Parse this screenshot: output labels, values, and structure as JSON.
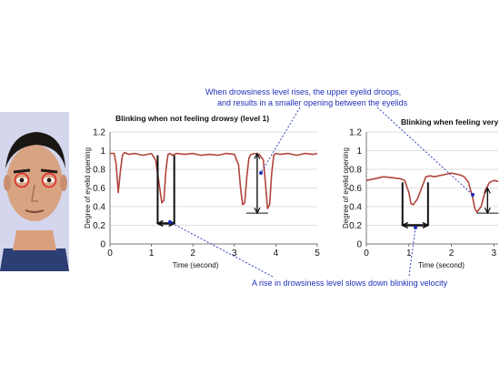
{
  "annotations": {
    "top_line1": "When drowsiness level rises, the upper eyelid droops,",
    "top_line2": "and results in a smaller opening between the eyelids",
    "bottom": "A rise in drowsiness level slows down blinking velocity"
  },
  "colors": {
    "curve": "#b0453c",
    "annotation": "#1f2fb8",
    "marker": "#111111",
    "grid": "#d4d4d4"
  },
  "photo_icon": "face-photo",
  "chart_data": [
    {
      "type": "line",
      "title": "Blinking when not feeling drowsy (level 1)",
      "xlabel": "Time (second)",
      "ylabel": "Degree of eyelid opening",
      "xlim": [
        0,
        5
      ],
      "ylim": [
        0,
        1.2
      ],
      "xticks": [
        "0",
        "1",
        "2",
        "3",
        "4",
        "5"
      ],
      "yticks": [
        "0",
        "0.2",
        "0.4",
        "0.6",
        "0.8",
        "1",
        "1.2"
      ],
      "grid": "horizontal",
      "series": [
        {
          "x": [
            0,
            0.1,
            0.15,
            0.2,
            0.25,
            0.3,
            0.35,
            0.45,
            0.6,
            0.8,
            1.0,
            1.1,
            1.2,
            1.25,
            1.3,
            1.35,
            1.4,
            1.45,
            1.5,
            1.6,
            1.8,
            2.0,
            2.2,
            2.4,
            2.6,
            2.8,
            3.0,
            3.1,
            3.15,
            3.2,
            3.25,
            3.3,
            3.35,
            3.4,
            3.5,
            3.6,
            3.7,
            3.75,
            3.8,
            3.85,
            3.9,
            3.95,
            4.0,
            4.1,
            4.3,
            4.5,
            4.7,
            4.9,
            5.0
          ],
          "y": [
            0.97,
            0.97,
            0.85,
            0.55,
            0.78,
            0.95,
            0.98,
            0.96,
            0.97,
            0.95,
            0.97,
            0.9,
            0.6,
            0.44,
            0.47,
            0.8,
            0.96,
            0.97,
            0.95,
            0.97,
            0.96,
            0.97,
            0.95,
            0.96,
            0.95,
            0.97,
            0.96,
            0.85,
            0.6,
            0.42,
            0.44,
            0.72,
            0.92,
            0.96,
            0.97,
            0.96,
            0.9,
            0.65,
            0.38,
            0.42,
            0.75,
            0.95,
            0.97,
            0.96,
            0.97,
            0.95,
            0.97,
            0.96,
            0.97
          ]
        }
      ],
      "markers": {
        "blink_width": {
          "x_start": 1.15,
          "x_end": 1.55,
          "y": 0.22,
          "y_top": 0.95
        },
        "opening_height": {
          "x": 3.55,
          "y_start": 0.97,
          "y_end": 0.33
        }
      }
    },
    {
      "type": "line",
      "title": "Blinking when feeling very",
      "xlabel": "Time (second)",
      "ylabel": "Degree of eyelid opening",
      "xlim": [
        0,
        3.1
      ],
      "ylim": [
        0,
        1.2
      ],
      "xticks": [
        "0",
        "1",
        "2",
        "3"
      ],
      "yticks": [
        "0",
        "0.2",
        "0.4",
        "0.6",
        "0.8",
        "1",
        "1.2"
      ],
      "grid": "horizontal",
      "series": [
        {
          "x": [
            0,
            0.2,
            0.4,
            0.6,
            0.8,
            0.9,
            1.0,
            1.05,
            1.1,
            1.2,
            1.3,
            1.4,
            1.5,
            1.6,
            1.8,
            2.0,
            2.2,
            2.3,
            2.4,
            2.5,
            2.55,
            2.6,
            2.7,
            2.8,
            2.9,
            3.0,
            3.1
          ],
          "y": [
            0.68,
            0.7,
            0.72,
            0.71,
            0.7,
            0.68,
            0.55,
            0.43,
            0.42,
            0.48,
            0.6,
            0.72,
            0.73,
            0.72,
            0.74,
            0.76,
            0.74,
            0.72,
            0.66,
            0.5,
            0.38,
            0.34,
            0.4,
            0.58,
            0.66,
            0.68,
            0.67
          ]
        }
      ],
      "markers": {
        "blink_width": {
          "x_start": 0.85,
          "x_end": 1.45,
          "y": 0.2,
          "y_top": 0.66
        },
        "opening_height": {
          "x": 2.85,
          "y_start": 0.6,
          "y_end": 0.33
        }
      }
    }
  ]
}
